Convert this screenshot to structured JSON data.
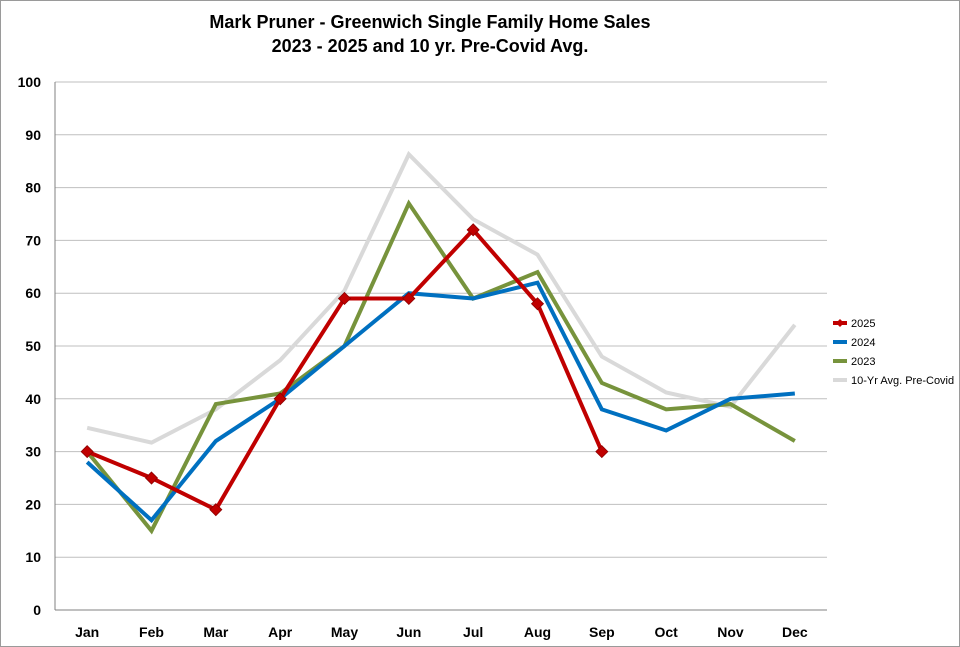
{
  "chart_data": {
    "type": "line",
    "title": "Mark Pruner - Greenwich Single Family Home Sales",
    "subtitle": "2023 - 2025 and 10 yr. Pre-Covid Avg.",
    "xlabel": "",
    "ylabel": "",
    "ylim": [
      0,
      100
    ],
    "yticks": [
      0,
      10,
      20,
      30,
      40,
      50,
      60,
      70,
      80,
      90,
      100
    ],
    "grid": true,
    "legend_position": "right",
    "categories": [
      "Jan",
      "Feb",
      "Mar",
      "Apr",
      "May",
      "Jun",
      "Jul",
      "Aug",
      "Sep",
      "Oct",
      "Nov",
      "Dec"
    ],
    "series": [
      {
        "name": "10-Yr Avg. Pre-Covid",
        "color": "#d9d9d9",
        "marker": "none",
        "values": [
          34.5,
          31.7,
          38,
          47.3,
          60.5,
          86.3,
          74,
          67.3,
          48,
          41.2,
          38.5,
          54
        ]
      },
      {
        "name": "2023",
        "color": "#77933c",
        "marker": "none",
        "values": [
          30,
          15,
          39,
          41,
          50,
          77,
          59,
          64,
          43,
          38,
          39,
          32
        ]
      },
      {
        "name": "2024",
        "color": "#0070c0",
        "marker": "none",
        "values": [
          28,
          17,
          32,
          40,
          50,
          60,
          59,
          62,
          38,
          34,
          40,
          41
        ]
      },
      {
        "name": "2025",
        "color": "#c00000",
        "marker": "diamond",
        "values": [
          30,
          25,
          19,
          40,
          59,
          59,
          72,
          58,
          30,
          null,
          null,
          null
        ]
      }
    ],
    "legend_order": [
      "2025",
      "2024",
      "2023",
      "10-Yr Avg. Pre-Covid"
    ]
  }
}
